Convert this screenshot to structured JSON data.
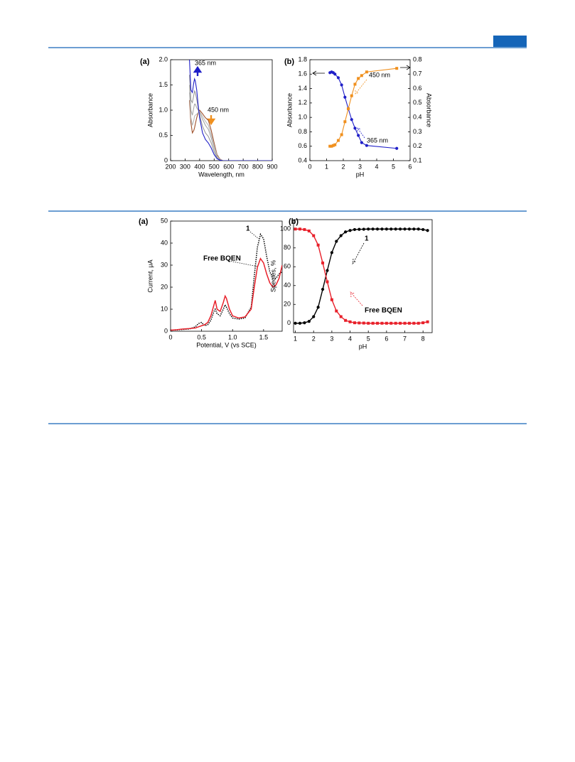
{
  "chart_data": [
    {
      "type": "line",
      "title": "(a)",
      "xlabel": "Wavelength, nm",
      "ylabel": "Absorbance",
      "xlim": [
        200,
        900
      ],
      "xticks": [
        200,
        300,
        400,
        500,
        600,
        700,
        800,
        900
      ],
      "ylim": [
        0,
        2
      ],
      "yticks": [
        0,
        0.5,
        {
          "value": 1,
          "label": "1.0"
        },
        1.5,
        {
          "value": 2,
          "label": "2.0"
        }
      ],
      "x": [
        330,
        340,
        350,
        360,
        365,
        370,
        380,
        390,
        400,
        420,
        440,
        460,
        480,
        500,
        520,
        540,
        560,
        580,
        600,
        700,
        800,
        900
      ],
      "series": [
        {
          "color": "#a0522d",
          "values": [
            1.2,
            0.75,
            0.55,
            0.6,
            0.65,
            0.72,
            0.85,
            0.95,
            1.0,
            0.93,
            0.85,
            0.8,
            0.6,
            0.35,
            0.12,
            0.03,
            0,
            0,
            0,
            0,
            0,
            0
          ]
        },
        {
          "color": "#b8b8b8",
          "values": [
            1.35,
            0.85,
            0.7,
            0.8,
            0.88,
            0.9,
            0.92,
            0.95,
            0.97,
            0.88,
            0.78,
            0.7,
            0.52,
            0.3,
            0.1,
            0.02,
            0,
            0,
            0,
            0,
            0,
            0
          ]
        },
        {
          "color": "#a8a8a8",
          "values": [
            1.5,
            1.0,
            0.9,
            1.05,
            1.12,
            1.12,
            1.05,
            1.0,
            0.96,
            0.82,
            0.7,
            0.62,
            0.45,
            0.25,
            0.08,
            0.02,
            0,
            0,
            0,
            0,
            0,
            0
          ]
        },
        {
          "color": "#9a9a9a",
          "values": [
            1.7,
            1.2,
            1.15,
            1.3,
            1.38,
            1.35,
            1.22,
            1.05,
            0.9,
            0.68,
            0.55,
            0.48,
            0.35,
            0.18,
            0.05,
            0.01,
            0,
            0,
            0,
            0,
            0,
            0
          ]
        },
        {
          "color": "#1f1fc8",
          "values": [
            2.0,
            1.4,
            1.35,
            1.55,
            1.62,
            1.58,
            1.4,
            1.1,
            0.85,
            0.55,
            0.42,
            0.35,
            0.25,
            0.12,
            0.04,
            0.01,
            0,
            0,
            0,
            0,
            0,
            0
          ]
        }
      ],
      "annotations": [
        {
          "text": "365 nm",
          "color": "#1f1fc8"
        },
        {
          "text": "450 nm",
          "color": "#f0901e"
        }
      ]
    },
    {
      "type": "line",
      "title": "(b)",
      "xlabel": "pH",
      "ylabel": "Absorbance",
      "y2label": "Absorbance",
      "xlim": [
        0,
        6
      ],
      "xticks": [
        0,
        1,
        2,
        3,
        4,
        5,
        6
      ],
      "ylim": [
        0.4,
        1.8
      ],
      "yticks": [
        0.4,
        0.6,
        0.8,
        {
          "value": 1,
          "label": "1.0"
        },
        1.2,
        1.4,
        1.6,
        1.8
      ],
      "y2lim": [
        0.1,
        0.8
      ],
      "y2ticks": [
        0.1,
        0.2,
        0.3,
        0.4,
        0.5,
        0.6,
        0.7,
        0.8
      ],
      "x": [
        1.2,
        1.3,
        1.4,
        1.5,
        1.7,
        1.9,
        2.1,
        2.3,
        2.5,
        2.7,
        2.9,
        3.1,
        3.4,
        5.2
      ],
      "series": [
        {
          "color": "#1f1fc8",
          "marker": "circle",
          "values": [
            1.62,
            1.63,
            1.62,
            1.6,
            1.55,
            1.45,
            1.28,
            1.12,
            0.97,
            0.85,
            0.75,
            0.65,
            0.61,
            0.57
          ]
        },
        {
          "color": "#f0901e",
          "marker": "square",
          "axis": "y2",
          "values": [
            0.2,
            0.2,
            0.205,
            0.21,
            0.24,
            0.28,
            0.37,
            0.46,
            0.55,
            0.63,
            0.67,
            0.69,
            0.715,
            0.74
          ]
        }
      ],
      "annotations": [
        {
          "text": "450 nm",
          "color": "#f0901e"
        },
        {
          "text": "365 nm",
          "color": "#1f1fc8"
        }
      ]
    },
    {
      "type": "line",
      "title": "(a)",
      "xlabel": "Potential, V (vs SCE)",
      "ylabel": "Current, μA",
      "xlim": [
        0,
        1.8
      ],
      "xticks": [
        0,
        0.5,
        {
          "value": 1,
          "label": "1.0"
        },
        1.5
      ],
      "ylim": [
        0,
        50
      ],
      "yticks": [
        0,
        10,
        20,
        30,
        40,
        50
      ],
      "x": [
        0,
        0.1,
        0.2,
        0.3,
        0.4,
        0.45,
        0.5,
        0.55,
        0.6,
        0.65,
        0.7,
        0.72,
        0.75,
        0.8,
        0.85,
        0.88,
        0.9,
        0.95,
        1.0,
        1.1,
        1.2,
        1.3,
        1.35,
        1.4,
        1.45,
        1.5,
        1.55,
        1.6,
        1.65,
        1.7,
        1.75,
        1.8
      ],
      "series": [
        {
          "name": "1",
          "color": "#000000",
          "dash": "dotted",
          "values": [
            0.5,
            0.6,
            0.8,
            1.0,
            2.0,
            3.5,
            4,
            2.5,
            3,
            5,
            9,
            10,
            8,
            7,
            10,
            12,
            11,
            8,
            6,
            5.5,
            6,
            11,
            25,
            38,
            44,
            42,
            34,
            27,
            24,
            24,
            26,
            27
          ]
        },
        {
          "name": "Free BQEN",
          "color": "#e8202a",
          "values": [
            0.5,
            0.7,
            1.0,
            1.2,
            1.5,
            2,
            2.5,
            3,
            4,
            7,
            12,
            14,
            10,
            9,
            13,
            16,
            15,
            10,
            7,
            6,
            6.5,
            10,
            20,
            29,
            33,
            31,
            26,
            22,
            20,
            21,
            24,
            30
          ]
        }
      ]
    },
    {
      "type": "line",
      "title": "(b)",
      "xlabel": "pH",
      "ylabel": "Species, %",
      "xlim": [
        0.9,
        8.5
      ],
      "xticks": [
        1,
        2,
        3,
        4,
        5,
        6,
        7,
        8
      ],
      "ylim": [
        -10,
        110
      ],
      "yticks": [
        0,
        20,
        40,
        60,
        80,
        100
      ],
      "x": [
        1,
        1.25,
        1.5,
        1.75,
        2,
        2.25,
        2.5,
        2.75,
        3,
        3.25,
        3.5,
        3.75,
        4,
        4.25,
        4.5,
        4.75,
        5,
        5.25,
        5.5,
        5.75,
        6,
        6.25,
        6.5,
        6.75,
        7,
        7.25,
        7.5,
        7.75,
        8,
        8.25
      ],
      "series": [
        {
          "name": "1",
          "color": "#000000",
          "marker": "circle",
          "values": [
            0,
            0,
            0.5,
            2,
            7,
            17,
            36,
            56,
            75,
            87,
            93,
            97,
            98.5,
            99.5,
            99.7,
            99.8,
            100,
            100,
            100,
            100,
            100,
            100,
            100,
            100,
            100,
            100,
            100,
            100,
            99.5,
            98.5
          ]
        },
        {
          "name": "Free BQEN",
          "color": "#e8202a",
          "marker": "square",
          "values": [
            100,
            100,
            99.5,
            98,
            93,
            83,
            64,
            44,
            25,
            13,
            7,
            3,
            1.5,
            0.5,
            0.3,
            0.2,
            0,
            0,
            0,
            0,
            0,
            0,
            0,
            0,
            0,
            0,
            0,
            0,
            0.5,
            1.5
          ]
        }
      ]
    }
  ]
}
